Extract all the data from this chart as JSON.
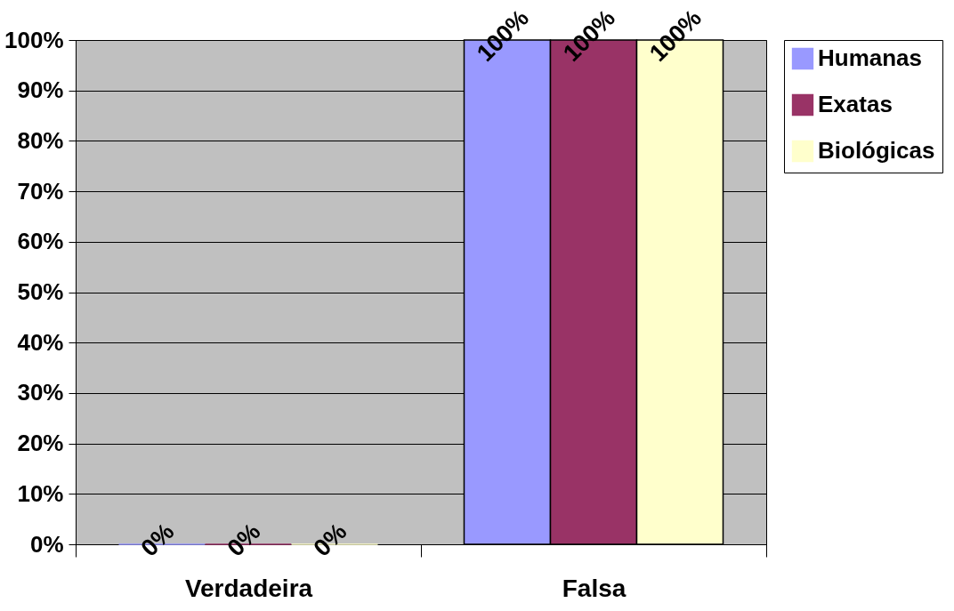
{
  "chart_data": {
    "type": "bar",
    "categories": [
      "Verdadeira",
      "Falsa"
    ],
    "series": [
      {
        "name": "Humanas",
        "color": "#9999ff",
        "values": [
          0,
          100
        ],
        "value_labels": [
          "0%",
          "100%"
        ]
      },
      {
        "name": "Exatas",
        "color": "#993366",
        "values": [
          0,
          100
        ],
        "value_labels": [
          "0%",
          "100%"
        ]
      },
      {
        "name": "Biológicas",
        "color": "#ffffcc",
        "values": [
          0,
          100
        ],
        "value_labels": [
          "0%",
          "100%"
        ]
      }
    ],
    "ylim": [
      0,
      100
    ],
    "yticks": [
      {
        "value": 0,
        "label": "0%"
      },
      {
        "value": 10,
        "label": "10%"
      },
      {
        "value": 20,
        "label": "20%"
      },
      {
        "value": 30,
        "label": "30%"
      },
      {
        "value": 40,
        "label": "40%"
      },
      {
        "value": 50,
        "label": "50%"
      },
      {
        "value": 60,
        "label": "60%"
      },
      {
        "value": 70,
        "label": "70%"
      },
      {
        "value": 80,
        "label": "80%"
      },
      {
        "value": 90,
        "label": "90%"
      },
      {
        "value": 100,
        "label": "100%"
      }
    ],
    "grid": "y",
    "legend": "right"
  }
}
